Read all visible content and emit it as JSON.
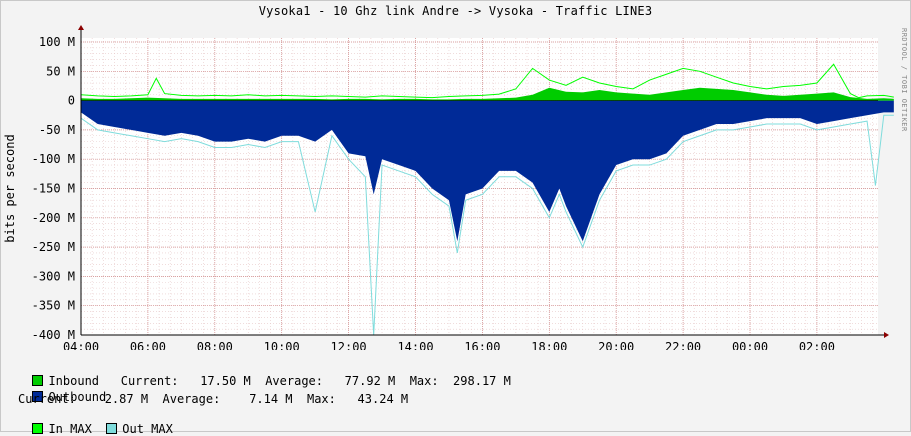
{
  "chart_data": {
    "type": "area",
    "title": "Vysoka1 - 10 Ghz link Andre -> Vysoka - Traffic LINE3",
    "ylabel": "bits per second",
    "credit": "RRDTOOL / TOBI OETIKER",
    "ylim": [
      -400,
      100
    ],
    "y_ticks": [
      100,
      50,
      0,
      -50,
      -100,
      -150,
      -200,
      -250,
      -300,
      -350,
      -400
    ],
    "y_tick_labels": [
      "100 M",
      "50 M",
      "0",
      "-50 M",
      "-100 M",
      "-150 M",
      "-200 M",
      "-250 M",
      "-300 M",
      "-350 M",
      "-400 M"
    ],
    "x_tick_labels": [
      "04:00",
      "06:00",
      "08:00",
      "10:00",
      "12:00",
      "14:00",
      "16:00",
      "18:00",
      "20:00",
      "22:00",
      "00:00",
      "02:00"
    ],
    "x_range_hours": [
      0,
      24.3
    ],
    "grid": true,
    "colors": {
      "inbound": "#00cc00",
      "outbound": "#002a97",
      "in_max": "#00ff00",
      "out_max": "#7fdcdc"
    },
    "inbound": {
      "x": [
        0,
        0.5,
        1,
        1.5,
        2,
        2.5,
        3,
        3.5,
        4,
        4.5,
        5,
        5.5,
        6,
        6.5,
        7,
        7.5,
        8,
        8.5,
        9,
        9.5,
        10,
        10.5,
        11,
        11.5,
        12,
        12.5,
        13,
        13.5,
        14,
        14.5,
        15,
        15.5,
        16,
        16.5,
        17,
        17.5,
        18,
        18.5,
        19,
        19.5,
        20,
        20.5,
        21,
        21.5,
        22,
        22.5,
        23,
        23.5,
        24,
        24.3
      ],
      "values": [
        4,
        3,
        3,
        4,
        5,
        4,
        3,
        3,
        3,
        3,
        3,
        3,
        3,
        3,
        3,
        2,
        3,
        3,
        2,
        3,
        3,
        2,
        2,
        3,
        3,
        4,
        5,
        10,
        22,
        15,
        14,
        18,
        14,
        12,
        10,
        14,
        18,
        22,
        20,
        18,
        14,
        10,
        8,
        10,
        12,
        14,
        6,
        3,
        4,
        3
      ]
    },
    "in_max": {
      "x": [
        0,
        0.5,
        1,
        1.5,
        2,
        2.25,
        2.5,
        3,
        3.5,
        4,
        4.5,
        5,
        5.5,
        6,
        6.5,
        7,
        7.5,
        8,
        8.5,
        9,
        9.5,
        10,
        10.5,
        11,
        11.5,
        12,
        12.5,
        13,
        13.5,
        14,
        14.5,
        15,
        15.5,
        16,
        16.5,
        17,
        17.5,
        18,
        18.5,
        19,
        19.5,
        20,
        20.5,
        21,
        21.5,
        22,
        22.5,
        23,
        23.25,
        23.5,
        24,
        24.3
      ],
      "values": [
        10,
        8,
        7,
        8,
        10,
        38,
        12,
        9,
        8,
        9,
        8,
        10,
        8,
        9,
        8,
        7,
        8,
        7,
        6,
        8,
        7,
        6,
        5,
        7,
        8,
        9,
        11,
        20,
        55,
        35,
        26,
        40,
        30,
        24,
        20,
        35,
        45,
        55,
        50,
        40,
        30,
        24,
        20,
        24,
        26,
        30,
        62,
        12,
        5,
        8,
        9,
        6
      ]
    },
    "outbound": {
      "x": [
        0,
        0.5,
        1,
        1.5,
        2,
        2.5,
        3,
        3.5,
        4,
        4.5,
        5,
        5.5,
        6,
        6.5,
        7,
        7.5,
        8,
        8.5,
        8.75,
        9,
        9.5,
        10,
        10.5,
        11,
        11.25,
        11.5,
        12,
        12.5,
        13,
        13.5,
        14,
        14.3,
        14.5,
        15,
        15.5,
        16,
        16.5,
        17,
        17.5,
        18,
        18.5,
        19,
        19.5,
        20,
        20.5,
        21,
        21.5,
        22,
        22.5,
        23,
        23.5,
        24,
        24.3
      ],
      "values": [
        -20,
        -40,
        -45,
        -50,
        -55,
        -60,
        -55,
        -60,
        -70,
        -70,
        -65,
        -70,
        -60,
        -60,
        -70,
        -50,
        -90,
        -95,
        -160,
        -100,
        -110,
        -120,
        -150,
        -170,
        -240,
        -160,
        -150,
        -120,
        -120,
        -140,
        -190,
        -150,
        -180,
        -240,
        -160,
        -110,
        -100,
        -100,
        -90,
        -60,
        -50,
        -40,
        -40,
        -35,
        -30,
        -30,
        -30,
        -40,
        -35,
        -30,
        -25,
        -20,
        -20
      ]
    },
    "out_max": {
      "x": [
        0,
        0.5,
        1,
        1.5,
        2,
        2.5,
        3,
        3.5,
        4,
        4.5,
        5,
        5.5,
        6,
        6.5,
        7,
        7.5,
        8,
        8.5,
        8.75,
        9,
        9.5,
        10,
        10.5,
        11,
        11.25,
        11.5,
        12,
        12.5,
        13,
        13.5,
        14,
        14.3,
        14.5,
        15,
        15.5,
        16,
        16.5,
        17,
        17.5,
        18,
        18.5,
        19,
        19.5,
        20,
        20.5,
        21,
        21.5,
        22,
        22.5,
        23,
        23.5,
        23.75,
        24,
        24.3
      ],
      "values": [
        -30,
        -50,
        -55,
        -60,
        -65,
        -70,
        -65,
        -70,
        -80,
        -80,
        -75,
        -80,
        -70,
        -70,
        -190,
        -60,
        -100,
        -130,
        -400,
        -110,
        -120,
        -130,
        -160,
        -180,
        -260,
        -170,
        -160,
        -130,
        -130,
        -150,
        -200,
        -160,
        -190,
        -250,
        -170,
        -120,
        -110,
        -110,
        -100,
        -70,
        -60,
        -50,
        -50,
        -45,
        -40,
        -40,
        -40,
        -50,
        -45,
        -40,
        -35,
        -145,
        -25,
        -25
      ]
    }
  },
  "legend": {
    "inbound_label": "Inbound",
    "inbound_stats": "Current:   17.50 M  Average:   77.92 M  Max:  298.17 M",
    "outbound_label": "Outbound",
    "outbound_stats": "Current:    2.87 M  Average:    7.14 M  Max:   43.24 M",
    "in_max_label": "In MAX",
    "out_max_label": "Out MAX"
  }
}
